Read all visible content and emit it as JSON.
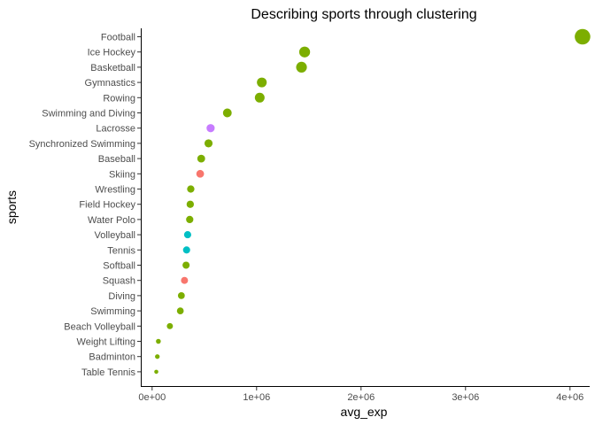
{
  "chart_data": {
    "type": "scatter",
    "title": "Describing sports through clustering",
    "xlabel": "avg_exp",
    "ylabel": "sports",
    "xlim": [
      -100000,
      4180000
    ],
    "x_ticks": [
      {
        "value": 0,
        "label": "0e+00"
      },
      {
        "value": 1000000,
        "label": "1e+06"
      },
      {
        "value": 2000000,
        "label": "2e+06"
      },
      {
        "value": 3000000,
        "label": "3e+06"
      },
      {
        "value": 4000000,
        "label": "4e+06"
      }
    ],
    "grid": false,
    "cluster_colors": {
      "c1": "#F8766D",
      "c2": "#7CAE00",
      "c3": "#00BFC4",
      "c4": "#C77CFF"
    },
    "points": [
      {
        "sport": "Football",
        "avg_exp": 4120000,
        "cluster": "c2"
      },
      {
        "sport": "Ice Hockey",
        "avg_exp": 1460000,
        "cluster": "c2"
      },
      {
        "sport": "Basketball",
        "avg_exp": 1430000,
        "cluster": "c2"
      },
      {
        "sport": "Gymnastics",
        "avg_exp": 1050000,
        "cluster": "c2"
      },
      {
        "sport": "Rowing",
        "avg_exp": 1030000,
        "cluster": "c2"
      },
      {
        "sport": "Swimming and Diving",
        "avg_exp": 720000,
        "cluster": "c2"
      },
      {
        "sport": "Lacrosse",
        "avg_exp": 560000,
        "cluster": "c4"
      },
      {
        "sport": "Synchronized Swimming",
        "avg_exp": 540000,
        "cluster": "c2"
      },
      {
        "sport": "Baseball",
        "avg_exp": 470000,
        "cluster": "c2"
      },
      {
        "sport": "Skiing",
        "avg_exp": 460000,
        "cluster": "c1"
      },
      {
        "sport": "Wrestling",
        "avg_exp": 370000,
        "cluster": "c2"
      },
      {
        "sport": "Field Hockey",
        "avg_exp": 365000,
        "cluster": "c2"
      },
      {
        "sport": "Water Polo",
        "avg_exp": 360000,
        "cluster": "c2"
      },
      {
        "sport": "Volleyball",
        "avg_exp": 340000,
        "cluster": "c3"
      },
      {
        "sport": "Tennis",
        "avg_exp": 330000,
        "cluster": "c3"
      },
      {
        "sport": "Softball",
        "avg_exp": 325000,
        "cluster": "c2"
      },
      {
        "sport": "Squash",
        "avg_exp": 310000,
        "cluster": "c1"
      },
      {
        "sport": "Diving",
        "avg_exp": 280000,
        "cluster": "c2"
      },
      {
        "sport": "Swimming",
        "avg_exp": 270000,
        "cluster": "c2"
      },
      {
        "sport": "Beach Volleyball",
        "avg_exp": 170000,
        "cluster": "c2"
      },
      {
        "sport": "Weight Lifting",
        "avg_exp": 60000,
        "cluster": "c2"
      },
      {
        "sport": "Badminton",
        "avg_exp": 50000,
        "cluster": "c2"
      },
      {
        "sport": "Table Tennis",
        "avg_exp": 40000,
        "cluster": "c2"
      }
    ]
  }
}
